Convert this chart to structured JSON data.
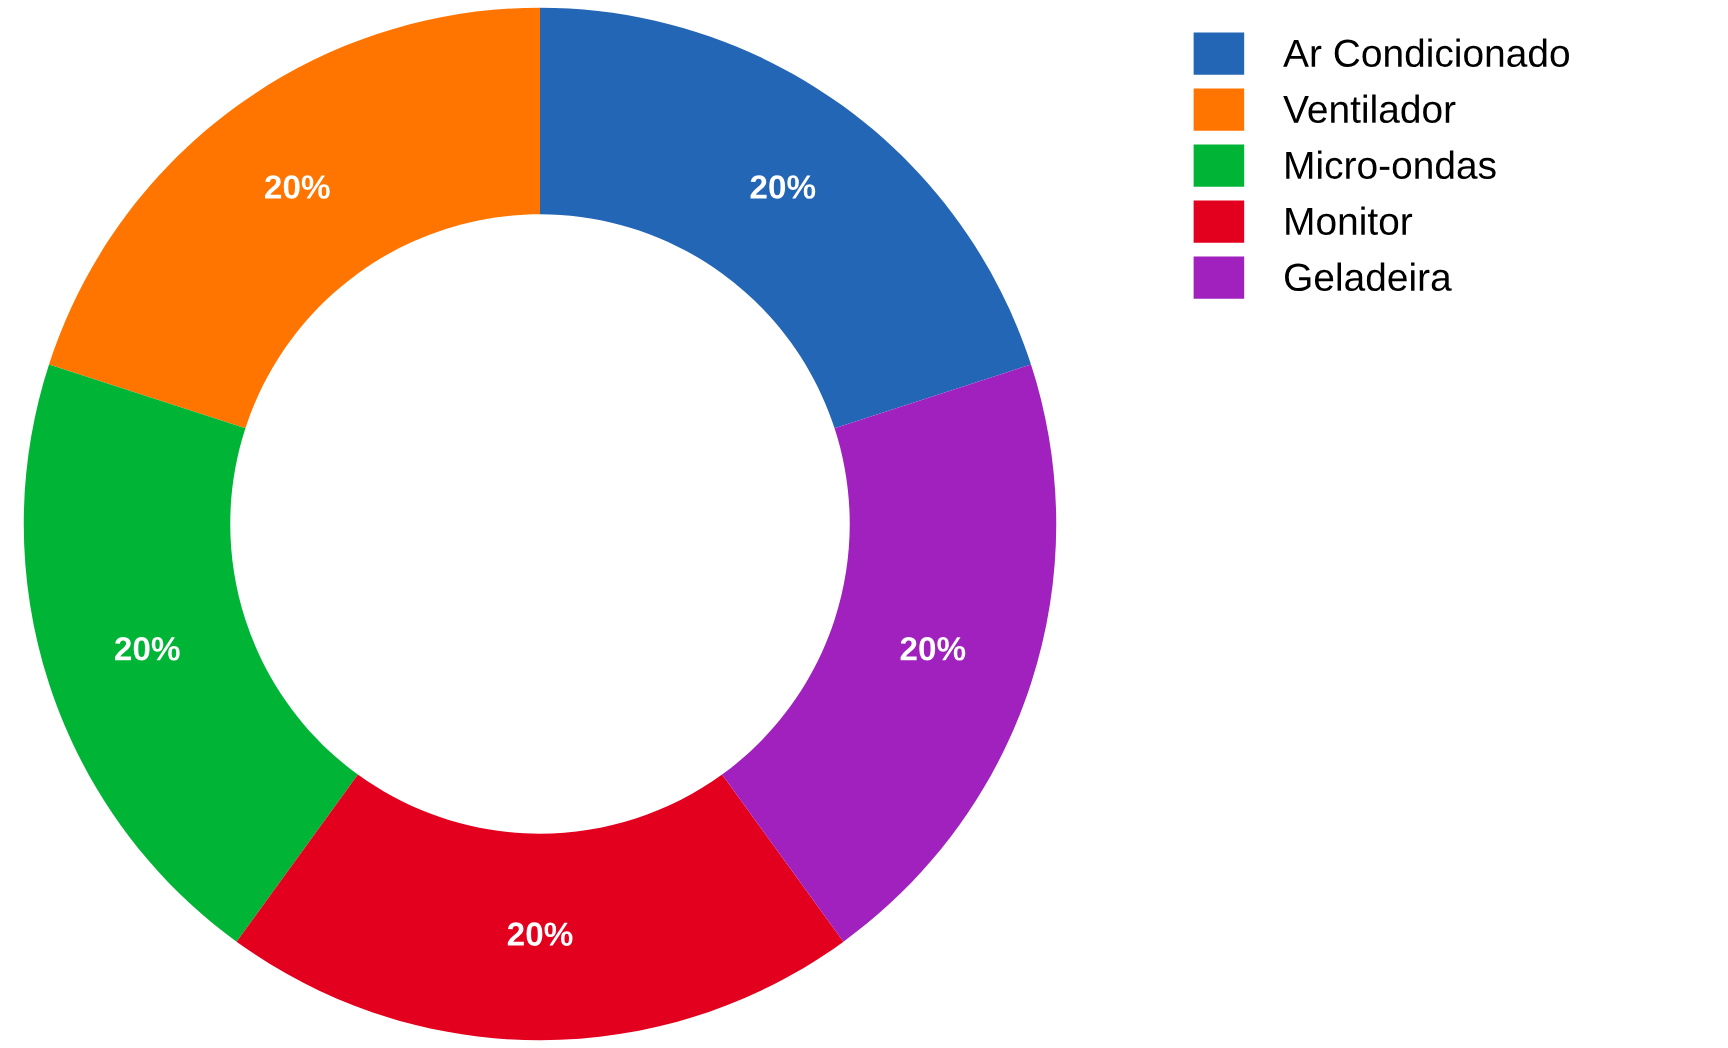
{
  "chart_data": {
    "type": "donut",
    "categories": [
      "Ar Condicionado",
      "Ventilador",
      "Micro-ondas",
      "Monitor",
      "Geladeira"
    ],
    "values": [
      20,
      20,
      20,
      20,
      20
    ],
    "value_labels": [
      "20%",
      "20%",
      "20%",
      "20%",
      "20%"
    ],
    "colors": [
      "#2466b6",
      "#ff7500",
      "#00b535",
      "#e3001e",
      "#a021be"
    ],
    "legend": "top right"
  }
}
